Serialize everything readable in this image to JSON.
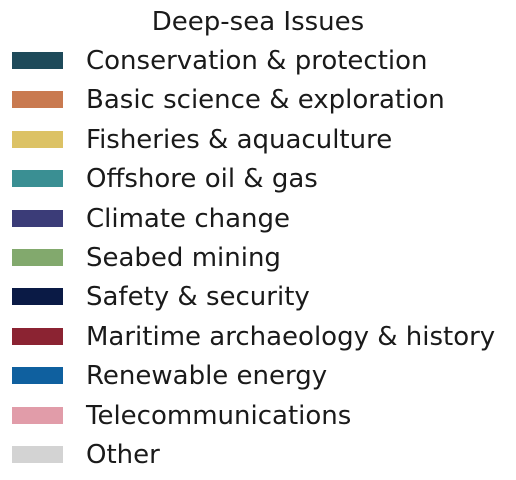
{
  "chart_data": {
    "type": "legend",
    "title": "Deep-sea Issues",
    "legend": [
      {
        "label": "Conservation & protection",
        "color": "#1e4a5a"
      },
      {
        "label": "Basic science & exploration",
        "color": "#c97a50"
      },
      {
        "label": "Fisheries & aquaculture",
        "color": "#dcc265"
      },
      {
        "label": "Offshore oil & gas",
        "color": "#3a8f93"
      },
      {
        "label": "Climate change",
        "color": "#3b3c78"
      },
      {
        "label": "Seabed mining",
        "color": "#82a96d"
      },
      {
        "label": "Safety & security",
        "color": "#0a1a45"
      },
      {
        "label": "Maritime archaeology & history",
        "color": "#8b2332"
      },
      {
        "label": "Renewable energy",
        "color": "#0f609f"
      },
      {
        "label": "Telecommunications",
        "color": "#e19ca9"
      },
      {
        "label": "Other",
        "color": "#d3d3d3"
      }
    ]
  }
}
